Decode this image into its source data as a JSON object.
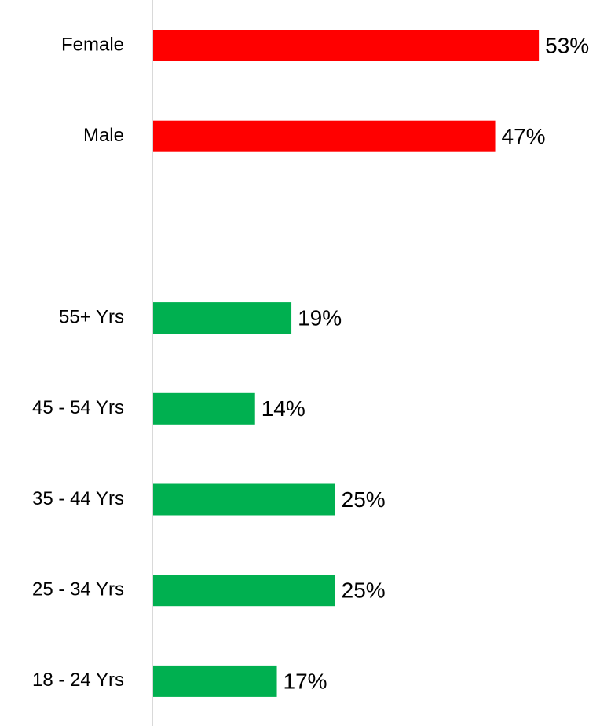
{
  "chart_data": {
    "type": "hbar",
    "categories": [
      "Female",
      "Male",
      null,
      "55+ Yrs",
      "45 - 54 Yrs",
      "35 - 44 Yrs",
      "25 - 34 Yrs",
      "18 - 24 Yrs"
    ],
    "values": [
      53,
      47,
      null,
      19,
      14,
      25,
      25,
      17
    ],
    "value_labels": [
      "53%",
      "47%",
      null,
      "19%",
      "14%",
      "25%",
      "25%",
      "17%"
    ],
    "colors": [
      "#ff0000",
      "#ff0000",
      null,
      "#00b050",
      "#00b050",
      "#00b050",
      "#00b050",
      "#00b050"
    ],
    "xlim": [
      0,
      60
    ]
  }
}
